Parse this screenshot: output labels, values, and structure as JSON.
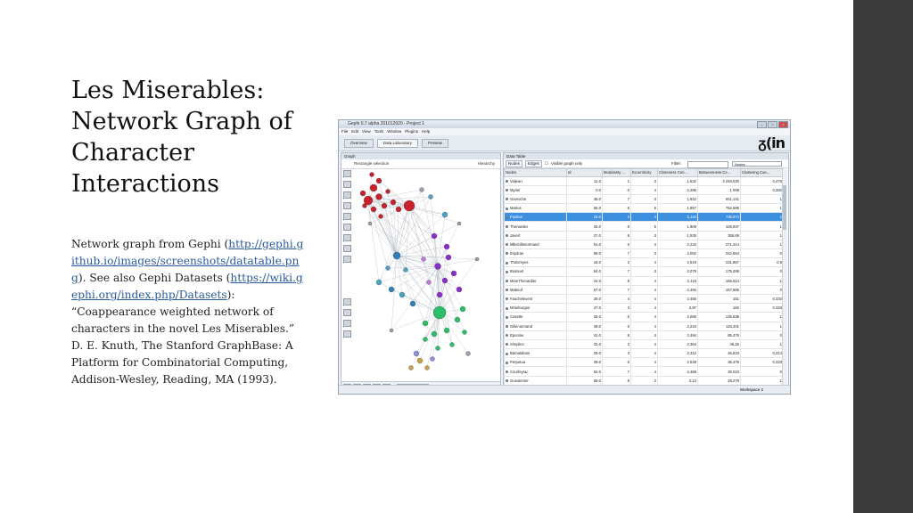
{
  "slide": {
    "title_lines": [
      "Les Miserables:",
      "Network Graph of",
      "Character",
      "Interactions"
    ],
    "body": {
      "intro": "Network graph from Gephi (",
      "link1": "http://gephi.github.io/images/screenshots/datatable.png",
      "mid": ").  See also Gephi Datasets (",
      "link2": "https://wiki.gephi.org/index.php/Datasets",
      "tail": "): “Coappearance weighted network of characters in the novel Les Miserables.” D. E. Knuth, The Stanford GraphBase: A Platform for Combinatorial Computing, Addison-Wesley, Reading, MA (1993)."
    }
  },
  "gephi": {
    "window_title": "Gephi 0.7 alpha 201012020 - Project 1",
    "menu": [
      "File",
      "Edit",
      "View",
      "Tools",
      "Window",
      "Plugins",
      "Help"
    ],
    "workspace_tabs": [
      "Overview",
      "Data Laboratory",
      "Preview"
    ],
    "logo": "ᵹ(in",
    "graph_panel": {
      "tab": "Graph",
      "selection_mode": "Rectangle selection",
      "hierarchy": "Hierarchy",
      "font_label": "Arial Gras, 14"
    },
    "data_table": {
      "tab": "Data Table",
      "subtabs": [
        "Nodes",
        "Edges"
      ],
      "visible_only": "Visible graph only",
      "filter_label": "Filter:",
      "filter_column": "Nodes",
      "columns": [
        "Nodes",
        "Id",
        "Modularity ...",
        "Eccentricity",
        "Closeness Cen...",
        "Betweenness Ce...",
        "Clustering Coe..."
      ],
      "selected_row": 4,
      "rows": [
        [
          "Valjean",
          "11.0",
          "1",
          "3",
          "1,532",
          "3 248,030",
          "0,476"
        ],
        [
          "Myriel",
          "0.0",
          "0",
          "4",
          "2,286",
          "1 008",
          "0,382"
        ],
        [
          "Gavroche",
          "48.0",
          "7",
          "3",
          "1,922",
          "941,141",
          "1"
        ],
        [
          "Marius",
          "55.0",
          "6",
          "5",
          "1,857",
          "752,585",
          "1"
        ],
        [
          "Fantine",
          "23.0",
          "3",
          "4",
          "2,143",
          "736,974",
          "1"
        ],
        [
          "Thenardier",
          "25.0",
          "8",
          "5",
          "1,909",
          "426,937",
          "1"
        ],
        [
          "Javert",
          "27.0",
          "8",
          "3",
          "1,935",
          "359,69",
          "1"
        ],
        [
          "MlleGillenormand",
          "51.0",
          "6",
          "4",
          "2,234",
          "271,314",
          "1"
        ],
        [
          "Enjolras",
          "58.0",
          "7",
          "3",
          "2,052",
          "242,654",
          "0"
        ],
        [
          "Tholomyes",
          "16.0",
          "2",
          "4",
          "2,519",
          "231,867",
          "0,8"
        ],
        [
          "Bossuet",
          "64.0",
          "7",
          "3",
          "2,078",
          "175,286",
          "0"
        ],
        [
          "MmeThenardier",
          "24.0",
          "8",
          "4",
          "2,143",
          "165,514",
          "1"
        ],
        [
          "Mabeuf",
          "57.0",
          "7",
          "4",
          "2,494",
          "157,685",
          "0"
        ],
        [
          "Fauchelevent",
          "28.0",
          "4",
          "4",
          "2,455",
          "151",
          "0,333"
        ],
        [
          "Mmeburgon",
          "47.0",
          "3",
          "4",
          "2,87",
          "182",
          "0,333"
        ],
        [
          "Cosette",
          "26.0",
          "6",
          "4",
          "2,065",
          "135,639",
          "1"
        ],
        [
          "Gillenormand",
          "49.0",
          "6",
          "4",
          "2,234",
          "115,201",
          "1"
        ],
        [
          "Eponine",
          "41.0",
          "8",
          "4",
          "2,494",
          "85,476",
          "0"
        ],
        [
          "Simplice",
          "31.0",
          "2",
          "4",
          "2,364",
          "46,25",
          "1"
        ],
        [
          "Bamatabois",
          "29.0",
          "3",
          "4",
          "2,312",
          "45,833",
          "0,314"
        ],
        [
          "Perpetua",
          "39.0",
          "6",
          "4",
          "2,649",
          "35,475",
          "0,333"
        ],
        [
          "Courfeyrac",
          "62.0",
          "7",
          "4",
          "2,468",
          "30,023",
          "0"
        ],
        [
          "Gueulemer",
          "69.0",
          "8",
          "2",
          "2,13",
          "28,279",
          "1"
        ],
        [
          "Babet",
          "69.0",
          "8",
          "2",
          "2,13",
          "28,279",
          "1"
        ],
        [
          "Claquesous",
          "70.0",
          "8",
          "4",
          "2,182",
          "27,712",
          "1"
        ]
      ]
    },
    "status": {
      "workspace": "Workspace 2"
    },
    "colors": {
      "red_cluster": "#c8212b",
      "purple_cluster": "#8e2bd0",
      "blue_cluster": "#2c7fb8",
      "green_cluster": "#2bbf6a",
      "selected_row": "#3d8fe0"
    }
  }
}
